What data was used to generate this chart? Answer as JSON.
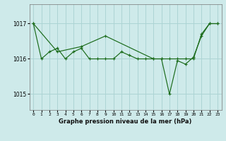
{
  "title": "Graphe pression niveau de la mer (hPa)",
  "background_color": "#ceeaea",
  "line_color": "#1a6b1a",
  "grid_color": "#acd4d4",
  "xlim": [
    -0.5,
    23.5
  ],
  "ylim": [
    1014.55,
    1017.55
  ],
  "yticks": [
    1015,
    1016,
    1017
  ],
  "xtick_labels": [
    "0",
    "1",
    "2",
    "3",
    "4",
    "5",
    "6",
    "7",
    "8",
    "9",
    "10",
    "11",
    "12",
    "13",
    "14",
    "15",
    "16",
    "17",
    "18",
    "19",
    "20",
    "21",
    "22",
    "23"
  ],
  "series1_x": [
    0,
    1,
    2,
    3,
    4,
    5,
    6,
    7,
    8,
    9,
    10,
    11,
    12,
    13,
    14,
    15,
    16,
    17,
    18,
    19,
    20,
    21,
    22,
    23
  ],
  "series1_y": [
    1017.0,
    1016.0,
    1016.2,
    1016.3,
    1016.0,
    1016.2,
    1016.3,
    1016.0,
    1016.0,
    1016.0,
    1016.0,
    1016.2,
    1016.1,
    1016.0,
    1016.0,
    1016.0,
    1016.0,
    1016.0,
    1016.0,
    1016.0,
    1016.0,
    1016.7,
    1017.0,
    1017.0
  ],
  "series2_x": [
    0,
    3,
    6,
    9,
    15,
    16,
    17,
    18,
    19,
    20,
    21,
    22,
    23
  ],
  "series2_y": [
    1017.0,
    1016.2,
    1016.35,
    1016.65,
    1016.0,
    1016.0,
    1015.0,
    1015.95,
    1015.85,
    1016.05,
    1016.65,
    1017.0,
    1017.0
  ]
}
